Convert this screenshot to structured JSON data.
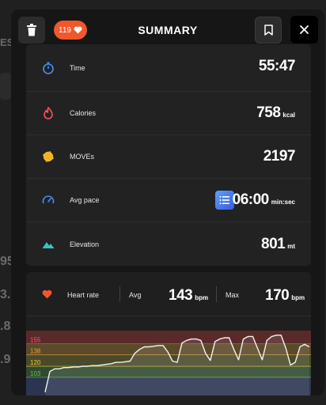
{
  "header": {
    "title": "SUMMARY",
    "kudos_count": "119",
    "icons": [
      "trash-icon",
      "heart-icon",
      "bookmark-icon",
      "close-icon"
    ]
  },
  "background_fragments": {
    "left_labels": [
      "ES",
      "95",
      "3.",
      ".8",
      ".9"
    ]
  },
  "stats": [
    {
      "label": "Time",
      "value": "55:47",
      "unit": "",
      "icon": "stopwatch-icon",
      "color": "#4a8ff0"
    },
    {
      "label": "Calories",
      "value": "758",
      "unit": "kcal",
      "icon": "flame-icon",
      "color": "#f2555a"
    },
    {
      "label": "MOVEs",
      "value": "2197",
      "unit": "",
      "icon": "moves-icon",
      "color": "#f5b425"
    },
    {
      "label": "Avg pace",
      "value": "06:00",
      "unit": "min:sec",
      "icon": "speedometer-icon",
      "color": "#4a8ff0"
    },
    {
      "label": "Elevation",
      "value": "801",
      "unit": "mt",
      "icon": "mountain-icon",
      "color": "#37c3c3"
    }
  ],
  "heart_rate": {
    "label": "Heart rate",
    "avg_label": "Avg",
    "avg_value": "143",
    "max_label": "Max",
    "max_value": "170",
    "unit": "bpm",
    "zone_labels": [
      "155",
      "138",
      "120",
      "103"
    ],
    "zone_colors": [
      "#5a2a2a",
      "#5a4a2a",
      "#4a4a2a",
      "#2f4a2f",
      "#2c3550"
    ],
    "zone_text_colors": [
      "#ff5a5a",
      "#f0a040",
      "#e8d040",
      "#60c060"
    ]
  },
  "chart_data": {
    "type": "line",
    "title": "",
    "xlabel": "",
    "ylabel": "",
    "ylim": [
      70,
      175
    ],
    "x": [
      0,
      1,
      2,
      3,
      4,
      5,
      6,
      7,
      8,
      9,
      10,
      11,
      12,
      13,
      14,
      15,
      16,
      17,
      18,
      19,
      20,
      21,
      22,
      23,
      24,
      25,
      26,
      27,
      28,
      29,
      30,
      31,
      32,
      33,
      34,
      35,
      36,
      37,
      38,
      39,
      40,
      41,
      42,
      43,
      44,
      45,
      46,
      47,
      48,
      49,
      50,
      51,
      52,
      53,
      54,
      55,
      56
    ],
    "series": [
      {
        "values": [
          80,
          112,
          116,
          116,
          118,
          118,
          119,
          119,
          120,
          120,
          121,
          121,
          122,
          123,
          124,
          126,
          126,
          127,
          128,
          140,
          146,
          150,
          150,
          151,
          152,
          152,
          142,
          128,
          126,
          156,
          160,
          162,
          162,
          160,
          140,
          129,
          158,
          162,
          164,
          164,
          146,
          130,
          162,
          166,
          166,
          148,
          130,
          160,
          166,
          168,
          168,
          148,
          122,
          126,
          150,
          154,
          150
        ]
      }
    ]
  },
  "colors": {
    "accent": "#f0582a",
    "line": "#f2f2f2"
  }
}
